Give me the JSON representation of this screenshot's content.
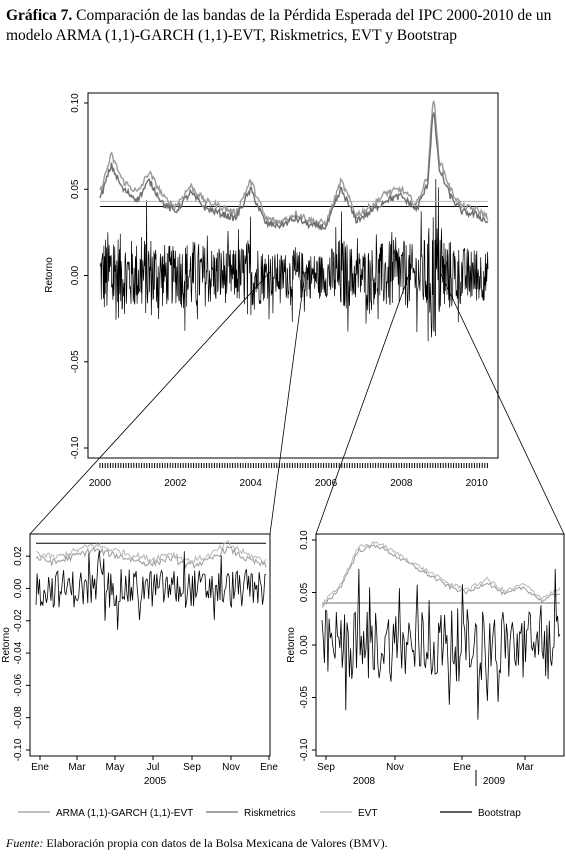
{
  "caption": {
    "label": "Gráfica 7.",
    "text": "Comparación de las bandas de la Pérdida Esperada del IPC 2000-2010 de un modelo ARMA (1,1)-GARCH (1,1)-EVT, Riskmetrics, EVT y Bootstrap"
  },
  "source": {
    "label": "Fuente:",
    "text": "Elaboración propia con datos de la Bolsa Mexicana de Valores (BMV)."
  },
  "colors": {
    "returns": "#000000",
    "arma_garch_evt": "#9a9a9a",
    "riskmetrics": "#6e6e6e",
    "evt": "#b8b8b8",
    "bootstrap": "#000000"
  },
  "legend": [
    {
      "label": "ARMA (1,1)-GARCH (1,1)-EVT",
      "color_key": "arma_garch_evt"
    },
    {
      "label": "Riskmetrics",
      "color_key": "riskmetrics"
    },
    {
      "label": "EVT",
      "color_key": "evt"
    },
    {
      "label": "Bootstrap",
      "color_key": "bootstrap"
    }
  ],
  "chart_data": [
    {
      "type": "line",
      "panel": "main",
      "ylabel": "Retorno",
      "xlabel": "",
      "xlim": [
        2000.0,
        2010.3
      ],
      "ylim": [
        -0.1,
        0.1
      ],
      "x_ticks": [
        "2000",
        "2002",
        "2004",
        "2006",
        "2008",
        "2010"
      ],
      "x_tick_values": [
        2000,
        2002,
        2004,
        2006,
        2008,
        2010
      ],
      "y_ticks": [
        "0.10",
        "0.05",
        "0.00",
        "-0.05",
        "-0.10"
      ],
      "y_tick_values": [
        0.1,
        0.05,
        0.0,
        -0.05,
        -0.1
      ],
      "series": [
        {
          "name": "Bootstrap",
          "constant": 0.04
        },
        {
          "name": "EVT",
          "constant": 0.043
        },
        {
          "name": "ARMA (1,1)-GARCH (1,1)-EVT",
          "x": [
            2000.0,
            2000.3,
            2000.6,
            2001.0,
            2001.3,
            2001.7,
            2002.0,
            2002.4,
            2002.8,
            2003.2,
            2003.6,
            2004.0,
            2004.4,
            2004.8,
            2005.2,
            2005.6,
            2006.0,
            2006.4,
            2006.8,
            2007.2,
            2007.6,
            2008.0,
            2008.4,
            2008.7,
            2008.85,
            2009.0,
            2009.3,
            2009.6,
            2010.0,
            2010.3
          ],
          "y": [
            0.048,
            0.07,
            0.055,
            0.048,
            0.06,
            0.045,
            0.04,
            0.052,
            0.043,
            0.04,
            0.036,
            0.055,
            0.033,
            0.031,
            0.036,
            0.032,
            0.03,
            0.055,
            0.035,
            0.04,
            0.048,
            0.05,
            0.041,
            0.058,
            0.105,
            0.068,
            0.05,
            0.04,
            0.038,
            0.034
          ]
        },
        {
          "name": "Riskmetrics",
          "x": [
            2000.0,
            2000.3,
            2000.6,
            2001.0,
            2001.3,
            2001.7,
            2002.0,
            2002.4,
            2002.8,
            2003.2,
            2003.6,
            2004.0,
            2004.4,
            2004.8,
            2005.2,
            2005.6,
            2006.0,
            2006.4,
            2006.8,
            2007.2,
            2007.6,
            2008.0,
            2008.4,
            2008.7,
            2008.85,
            2009.0,
            2009.3,
            2009.6,
            2010.0,
            2010.3
          ],
          "y": [
            0.044,
            0.064,
            0.05,
            0.044,
            0.055,
            0.041,
            0.037,
            0.048,
            0.039,
            0.036,
            0.033,
            0.05,
            0.03,
            0.029,
            0.033,
            0.029,
            0.028,
            0.05,
            0.032,
            0.037,
            0.044,
            0.046,
            0.038,
            0.053,
            0.098,
            0.062,
            0.046,
            0.037,
            0.035,
            0.031
          ]
        }
      ]
    },
    {
      "type": "line",
      "panel": "zoom-2005",
      "ylabel": "Retorno",
      "xlabel": "2005",
      "ylim": [
        -0.1,
        0.03
      ],
      "x_ticks": [
        "Ene",
        "Mar",
        "May",
        "Jul",
        "Sep",
        "Nov",
        "Ene"
      ],
      "y_ticks": [
        "0.02",
        "0.00",
        "-0.02",
        "-0.04",
        "-0.06",
        "-0.08",
        "-0.10"
      ],
      "y_tick_values": [
        0.02,
        0.0,
        -0.02,
        -0.04,
        -0.06,
        -0.08,
        -0.1
      ],
      "series": [
        {
          "name": "Bootstrap",
          "constant": 0.028
        },
        {
          "name": "ARMA (1,1)-GARCH (1,1)-EVT",
          "x": [
            0,
            1,
            2,
            3,
            4,
            5,
            6,
            7,
            8,
            9,
            10,
            11,
            12
          ],
          "y": [
            0.019,
            0.016,
            0.02,
            0.024,
            0.021,
            0.018,
            0.015,
            0.019,
            0.014,
            0.017,
            0.025,
            0.018,
            0.014
          ]
        }
      ]
    },
    {
      "type": "line",
      "panel": "zoom-2008-2009",
      "ylabel": "Retorno",
      "xlabel_left": "2008",
      "xlabel_right": "2009",
      "ylim": [
        -0.1,
        0.1
      ],
      "x_ticks": [
        "Sep",
        "Nov",
        "Ene",
        "Mar"
      ],
      "y_ticks": [
        "0.10",
        "0.05",
        "0.00",
        "-0.05",
        "-0.10"
      ],
      "y_tick_values": [
        0.1,
        0.05,
        0.0,
        -0.05,
        -0.1
      ],
      "series": [
        {
          "name": "Bootstrap",
          "constant": 0.04
        },
        {
          "name": "ARMA (1,1)-GARCH (1,1)-EVT",
          "x": [
            0,
            1,
            2,
            3,
            4,
            5,
            6,
            7,
            8,
            9,
            10,
            11,
            12,
            13
          ],
          "y": [
            0.035,
            0.055,
            0.09,
            0.095,
            0.085,
            0.075,
            0.065,
            0.055,
            0.05,
            0.06,
            0.048,
            0.055,
            0.042,
            0.05
          ]
        }
      ]
    }
  ]
}
